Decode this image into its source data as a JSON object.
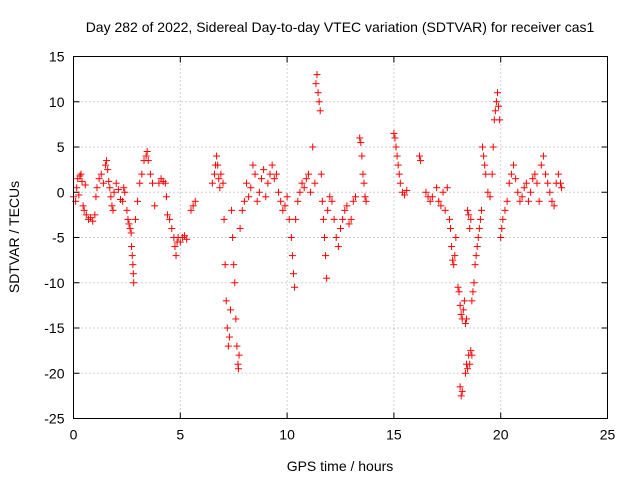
{
  "chart_data": {
    "type": "scatter",
    "title": "Day 282 of 2022, Sidereal Day-to-day VTEC variation (SDTVAR) for receiver cas1",
    "xlabel": "GPS time / hours",
    "ylabel": "SDTVAR / TECUs",
    "xlim": [
      0,
      25
    ],
    "ylim": [
      -25,
      15
    ],
    "xticks": [
      0,
      5,
      10,
      15,
      20,
      25
    ],
    "yticks": [
      15,
      10,
      5,
      0,
      -5,
      -10,
      -15,
      -20,
      -25
    ],
    "xtick_labels": [
      "0",
      "5",
      "10",
      "15",
      "20",
      "25"
    ],
    "ytick_labels": [
      "15",
      "10",
      "5",
      "0",
      "-5",
      "-10",
      "-15",
      "-20",
      "-25"
    ],
    "grid": true,
    "marker": "plus",
    "color": "#ff0000",
    "series": [
      {
        "name": "SDTVAR",
        "points": [
          [
            0.0,
            -0.5
          ],
          [
            0.1,
            -1.0
          ],
          [
            0.15,
            0.5
          ],
          [
            0.2,
            1.5
          ],
          [
            0.25,
            -0.3
          ],
          [
            0.3,
            1.8
          ],
          [
            0.35,
            2.0
          ],
          [
            0.4,
            1.2
          ],
          [
            0.45,
            -1.5
          ],
          [
            0.5,
            -2.0
          ],
          [
            0.55,
            0.8
          ],
          [
            0.6,
            -2.5
          ],
          [
            0.7,
            -3.0
          ],
          [
            0.8,
            -2.8
          ],
          [
            0.9,
            -3.2
          ],
          [
            1.0,
            -2.5
          ],
          [
            1.05,
            -0.5
          ],
          [
            1.1,
            0.5
          ],
          [
            1.2,
            1.5
          ],
          [
            1.3,
            2.0
          ],
          [
            1.4,
            1.0
          ],
          [
            1.5,
            3.0
          ],
          [
            1.55,
            3.5
          ],
          [
            1.6,
            2.5
          ],
          [
            1.65,
            1.2
          ],
          [
            1.7,
            0.5
          ],
          [
            1.75,
            -0.5
          ],
          [
            1.8,
            -1.5
          ],
          [
            1.85,
            -2.0
          ],
          [
            1.9,
            0.0
          ],
          [
            2.0,
            1.0
          ],
          [
            2.1,
            0.3
          ],
          [
            2.2,
            -0.8
          ],
          [
            2.3,
            -1.0
          ],
          [
            2.35,
            0.5
          ],
          [
            2.4,
            0.0
          ],
          [
            2.5,
            -2.0
          ],
          [
            2.55,
            -3.0
          ],
          [
            2.6,
            -3.5
          ],
          [
            2.65,
            -4.0
          ],
          [
            2.7,
            -4.5
          ],
          [
            2.72,
            -6.0
          ],
          [
            2.75,
            -7.0
          ],
          [
            2.78,
            -8.0
          ],
          [
            2.8,
            -9.0
          ],
          [
            2.82,
            -10.0
          ],
          [
            2.9,
            -3.0
          ],
          [
            3.0,
            -1.0
          ],
          [
            3.1,
            1.0
          ],
          [
            3.2,
            2.0
          ],
          [
            3.3,
            3.5
          ],
          [
            3.4,
            4.0
          ],
          [
            3.45,
            4.5
          ],
          [
            3.5,
            3.5
          ],
          [
            3.6,
            2.0
          ],
          [
            3.7,
            1.0
          ],
          [
            3.8,
            -1.5
          ],
          [
            4.0,
            1.0
          ],
          [
            4.1,
            1.5
          ],
          [
            4.2,
            1.2
          ],
          [
            4.3,
            1.0
          ],
          [
            4.35,
            -0.5
          ],
          [
            4.4,
            -2.5
          ],
          [
            4.5,
            -3.0
          ],
          [
            4.6,
            -4.0
          ],
          [
            4.7,
            -5.0
          ],
          [
            4.75,
            -6.0
          ],
          [
            4.8,
            -7.0
          ],
          [
            4.85,
            -5.5
          ],
          [
            4.9,
            -5.0
          ],
          [
            5.0,
            -5.5
          ],
          [
            5.1,
            -5.0
          ],
          [
            5.2,
            -4.8
          ],
          [
            5.3,
            -5.2
          ],
          [
            5.5,
            -2.0
          ],
          [
            5.6,
            -1.5
          ],
          [
            5.7,
            -1.0
          ],
          [
            6.5,
            1.0
          ],
          [
            6.6,
            2.0
          ],
          [
            6.65,
            3.0
          ],
          [
            6.7,
            4.0
          ],
          [
            6.75,
            3.0
          ],
          [
            6.8,
            1.5
          ],
          [
            6.85,
            0.5
          ],
          [
            6.9,
            2.0
          ],
          [
            7.0,
            1.0
          ],
          [
            7.05,
            -3.0
          ],
          [
            7.1,
            -8.0
          ],
          [
            7.15,
            -12.0
          ],
          [
            7.2,
            -15.0
          ],
          [
            7.25,
            -17.0
          ],
          [
            7.3,
            -16.0
          ],
          [
            7.35,
            -13.0
          ],
          [
            7.4,
            -2.0
          ],
          [
            7.45,
            -5.0
          ],
          [
            7.5,
            -8.0
          ],
          [
            7.55,
            -10.0
          ],
          [
            7.6,
            -14.0
          ],
          [
            7.65,
            -17.0
          ],
          [
            7.7,
            -19.0
          ],
          [
            7.72,
            -19.5
          ],
          [
            7.75,
            -18.0
          ],
          [
            7.8,
            -4.0
          ],
          [
            7.9,
            -2.0
          ],
          [
            8.0,
            -1.0
          ],
          [
            8.1,
            1.0
          ],
          [
            8.2,
            -0.5
          ],
          [
            8.3,
            0.5
          ],
          [
            8.4,
            3.0
          ],
          [
            8.5,
            2.0
          ],
          [
            8.6,
            -1.0
          ],
          [
            8.7,
            0.0
          ],
          [
            8.8,
            1.5
          ],
          [
            8.9,
            2.5
          ],
          [
            9.0,
            -0.5
          ],
          [
            9.1,
            1.0
          ],
          [
            9.2,
            2.0
          ],
          [
            9.3,
            3.0
          ],
          [
            9.4,
            1.5
          ],
          [
            9.5,
            2.0
          ],
          [
            9.6,
            0.0
          ],
          [
            9.7,
            -1.0
          ],
          [
            9.8,
            -2.0
          ],
          [
            9.9,
            -1.5
          ],
          [
            10.0,
            -0.5
          ],
          [
            10.1,
            -3.0
          ],
          [
            10.2,
            -5.0
          ],
          [
            10.25,
            -7.0
          ],
          [
            10.3,
            -9.0
          ],
          [
            10.35,
            -10.5
          ],
          [
            10.4,
            -3.0
          ],
          [
            10.5,
            -1.0
          ],
          [
            10.6,
            0.0
          ],
          [
            10.7,
            1.0
          ],
          [
            10.8,
            0.5
          ],
          [
            10.9,
            1.5
          ],
          [
            11.0,
            2.0
          ],
          [
            11.1,
            0.0
          ],
          [
            11.2,
            5.0
          ],
          [
            11.3,
            1.0
          ],
          [
            11.35,
            12.0
          ],
          [
            11.4,
            13.0
          ],
          [
            11.45,
            11.0
          ],
          [
            11.5,
            10.0
          ],
          [
            11.55,
            9.0
          ],
          [
            11.6,
            2.0
          ],
          [
            11.65,
            -1.0
          ],
          [
            11.7,
            -3.0
          ],
          [
            11.75,
            -5.0
          ],
          [
            11.8,
            -7.0
          ],
          [
            11.85,
            -9.5
          ],
          [
            11.9,
            -2.0
          ],
          [
            12.0,
            -0.5
          ],
          [
            12.1,
            -1.0
          ],
          [
            12.2,
            -3.0
          ],
          [
            12.3,
            -5.0
          ],
          [
            12.4,
            -6.0
          ],
          [
            12.5,
            -4.0
          ],
          [
            12.6,
            -3.0
          ],
          [
            12.7,
            -2.0
          ],
          [
            12.8,
            -1.5
          ],
          [
            12.9,
            -3.5
          ],
          [
            13.0,
            -3.0
          ],
          [
            13.1,
            -1.0
          ],
          [
            13.2,
            -0.5
          ],
          [
            13.4,
            6.0
          ],
          [
            13.45,
            5.5
          ],
          [
            13.5,
            4.0
          ],
          [
            13.55,
            2.0
          ],
          [
            13.6,
            1.0
          ],
          [
            13.65,
            -0.5
          ],
          [
            13.7,
            -1.0
          ],
          [
            15.0,
            6.5
          ],
          [
            15.05,
            6.0
          ],
          [
            15.1,
            5.0
          ],
          [
            15.15,
            4.0
          ],
          [
            15.2,
            3.0
          ],
          [
            15.25,
            2.0
          ],
          [
            15.3,
            1.0
          ],
          [
            15.4,
            0.0
          ],
          [
            15.5,
            -0.3
          ],
          [
            15.6,
            0.2
          ],
          [
            16.2,
            4.0
          ],
          [
            16.25,
            3.5
          ],
          [
            16.5,
            0.0
          ],
          [
            16.6,
            -0.5
          ],
          [
            16.7,
            -1.0
          ],
          [
            16.8,
            -0.5
          ],
          [
            17.0,
            0.5
          ],
          [
            17.1,
            -1.0
          ],
          [
            17.2,
            -1.5
          ],
          [
            17.3,
            0.0
          ],
          [
            17.4,
            -2.0
          ],
          [
            17.5,
            0.5
          ],
          [
            17.6,
            -3.0
          ],
          [
            17.65,
            -4.0
          ],
          [
            17.7,
            -6.0
          ],
          [
            17.75,
            -7.5
          ],
          [
            17.8,
            -8.0
          ],
          [
            17.85,
            -7.0
          ],
          [
            17.9,
            -5.0
          ],
          [
            18.0,
            -10.5
          ],
          [
            18.05,
            -11.0
          ],
          [
            18.1,
            -12.5
          ],
          [
            18.15,
            -13.5
          ],
          [
            18.2,
            -14.0
          ],
          [
            18.25,
            -13.0
          ],
          [
            18.3,
            -12.0
          ],
          [
            18.35,
            -14.5
          ],
          [
            18.4,
            -14.0
          ],
          [
            18.45,
            -2.0
          ],
          [
            18.5,
            -2.5
          ],
          [
            18.55,
            -4.0
          ],
          [
            18.6,
            -3.0
          ],
          [
            18.65,
            -12.0
          ],
          [
            18.7,
            -11.0
          ],
          [
            18.75,
            -10.0
          ],
          [
            18.8,
            -8.0
          ],
          [
            18.85,
            -7.0
          ],
          [
            18.9,
            -6.0
          ],
          [
            18.95,
            -5.0
          ],
          [
            19.0,
            -4.0
          ],
          [
            19.05,
            -3.0
          ],
          [
            19.1,
            -2.0
          ],
          [
            19.15,
            5.0
          ],
          [
            19.2,
            4.0
          ],
          [
            19.25,
            3.0
          ],
          [
            19.3,
            2.0
          ],
          [
            19.4,
            0.0
          ],
          [
            19.5,
            -0.5
          ],
          [
            19.6,
            2.0
          ],
          [
            19.65,
            5.0
          ],
          [
            19.7,
            8.0
          ],
          [
            19.75,
            9.0
          ],
          [
            19.8,
            10.0
          ],
          [
            19.85,
            11.0
          ],
          [
            19.9,
            9.5
          ],
          [
            19.95,
            8.0
          ],
          [
            20.0,
            -5.0
          ],
          [
            20.05,
            -4.0
          ],
          [
            20.1,
            -3.0
          ],
          [
            20.2,
            -2.0
          ],
          [
            20.3,
            -1.0
          ],
          [
            20.4,
            1.0
          ],
          [
            20.5,
            2.0
          ],
          [
            20.6,
            3.0
          ],
          [
            20.7,
            1.5
          ],
          [
            20.8,
            0.0
          ],
          [
            20.9,
            -1.0
          ],
          [
            21.0,
            -0.5
          ],
          [
            21.1,
            0.5
          ],
          [
            21.2,
            1.0
          ],
          [
            21.3,
            -1.0
          ],
          [
            21.4,
            0.0
          ],
          [
            21.5,
            1.5
          ],
          [
            21.6,
            2.0
          ],
          [
            21.7,
            1.0
          ],
          [
            21.8,
            -1.0
          ],
          [
            21.9,
            3.0
          ],
          [
            22.0,
            4.0
          ],
          [
            22.1,
            2.0
          ],
          [
            22.2,
            1.0
          ],
          [
            22.3,
            0.0
          ],
          [
            22.4,
            -1.0
          ],
          [
            22.5,
            -1.5
          ],
          [
            22.6,
            1.0
          ],
          [
            22.7,
            2.0
          ],
          [
            22.8,
            1.0
          ],
          [
            22.85,
            0.5
          ],
          [
            18.1,
            -21.5
          ],
          [
            18.15,
            -22.5
          ],
          [
            18.2,
            -22.0
          ],
          [
            18.35,
            -20.0
          ],
          [
            18.4,
            -19.0
          ],
          [
            18.45,
            -19.5
          ],
          [
            18.5,
            -18.0
          ],
          [
            18.55,
            -19.0
          ],
          [
            18.6,
            -17.5
          ],
          [
            18.65,
            -18.0
          ]
        ]
      }
    ]
  }
}
